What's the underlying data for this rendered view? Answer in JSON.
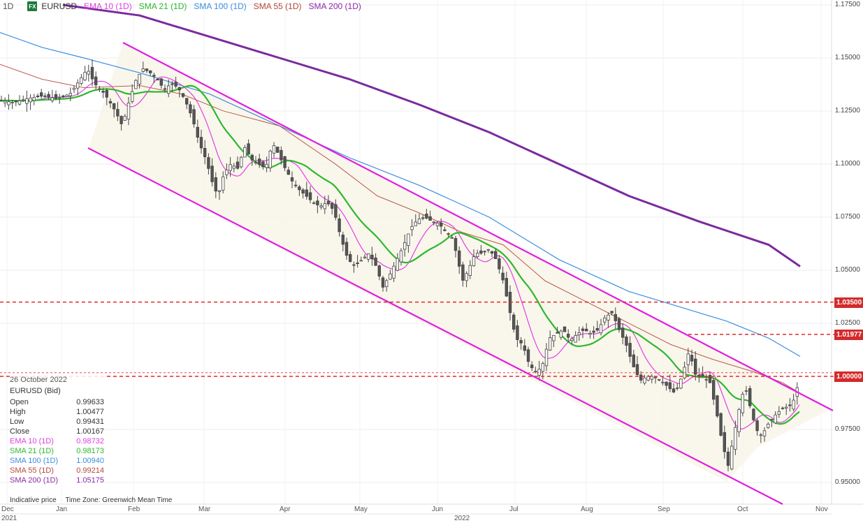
{
  "header": {
    "timeframe": "1D",
    "badge": "FX",
    "symbol": "EURUSD",
    "indicators": [
      {
        "label": "EMA 10 (1D)",
        "color": "#e040e0"
      },
      {
        "label": "SMA 21 (1D)",
        "color": "#2db82d"
      },
      {
        "label": "SMA 100 (1D)",
        "color": "#3a8fe0"
      },
      {
        "label": "SMA 55 (1D)",
        "color": "#b5473a"
      },
      {
        "label": "SMA 200 (1D)",
        "color": "#8a2aa8"
      }
    ]
  },
  "y_axis": {
    "labels": [
      "1.17500",
      "1.15000",
      "1.12500",
      "1.10000",
      "1.07500",
      "1.05000",
      "1.02500",
      "1.00000",
      "0.97500",
      "0.95000"
    ],
    "tags": [
      {
        "value": "1.03500",
        "color": "#d42a2a"
      },
      {
        "value": "1.01977",
        "color": "#d42a2a"
      },
      {
        "value": "1.00000",
        "color": "#d42a2a"
      }
    ]
  },
  "x_axis": {
    "months": [
      "Dec",
      "Jan",
      "Feb",
      "Mar",
      "Apr",
      "May",
      "Jun",
      "Jul",
      "Aug",
      "Sep",
      "Oct",
      "Nov"
    ],
    "years": [
      "2021",
      "2022"
    ]
  },
  "data_panel": {
    "date": "26 October 2022",
    "instrument": "EURUSD (Bid)",
    "rows": [
      {
        "label": "Open",
        "value": "0.99633",
        "color": "#333333"
      },
      {
        "label": "High",
        "value": "1.00477",
        "color": "#333333"
      },
      {
        "label": "Low",
        "value": "0.99431",
        "color": "#333333"
      },
      {
        "label": "Close",
        "value": "1.00167",
        "color": "#333333"
      },
      {
        "label": "EMA 10 (1D)",
        "value": "0.98732",
        "color": "#e040e0"
      },
      {
        "label": "SMA 21 (1D)",
        "value": "0.98173",
        "color": "#2db82d"
      },
      {
        "label": "SMA 100 (1D)",
        "value": "1.00940",
        "color": "#3a8fe0"
      },
      {
        "label": "SMA 55 (1D)",
        "value": "0.99214",
        "color": "#b5473a"
      },
      {
        "label": "SMA 200 (1D)",
        "value": "1.05175",
        "color": "#8a2aa8"
      }
    ]
  },
  "footnote": {
    "left": "Indicative price",
    "right": "Time Zone: Greenwich Mean Time"
  },
  "chart_data": {
    "type": "candlestick",
    "title": "EURUSD 1D",
    "xlabel": "",
    "ylabel": "",
    "ylim": [
      0.94,
      1.178
    ],
    "x_range": [
      "Dec 2021",
      "Nov 2022"
    ],
    "grid": true,
    "legend_position": "top-left",
    "series": [
      {
        "name": "EURUSD",
        "kind": "candles",
        "approx_closes_month_start": {
          "Dec": 1.13,
          "Jan": 1.137,
          "Feb": 1.145,
          "Mar": 1.112,
          "Apr": 1.105,
          "May": 1.052,
          "Jun": 1.075,
          "Jul": 1.042,
          "Aug": 1.025,
          "Sep": 0.995,
          "Oct": 0.98,
          "Oct26": 1.00167
        }
      },
      {
        "name": "EMA 10 (1D)",
        "last": 0.98732
      },
      {
        "name": "SMA 21 (1D)",
        "last": 0.98173
      },
      {
        "name": "SMA 100 (1D)",
        "last": 1.0094
      },
      {
        "name": "SMA 55 (1D)",
        "last": 0.99214
      },
      {
        "name": "SMA 200 (1D)",
        "last": 1.05175
      }
    ],
    "horizontal_levels": [
      1.035,
      1.01977,
      1.0
    ],
    "annotations": [
      "Descending channel (magenta trendlines) from Feb 2022 to Oct 2022"
    ]
  }
}
